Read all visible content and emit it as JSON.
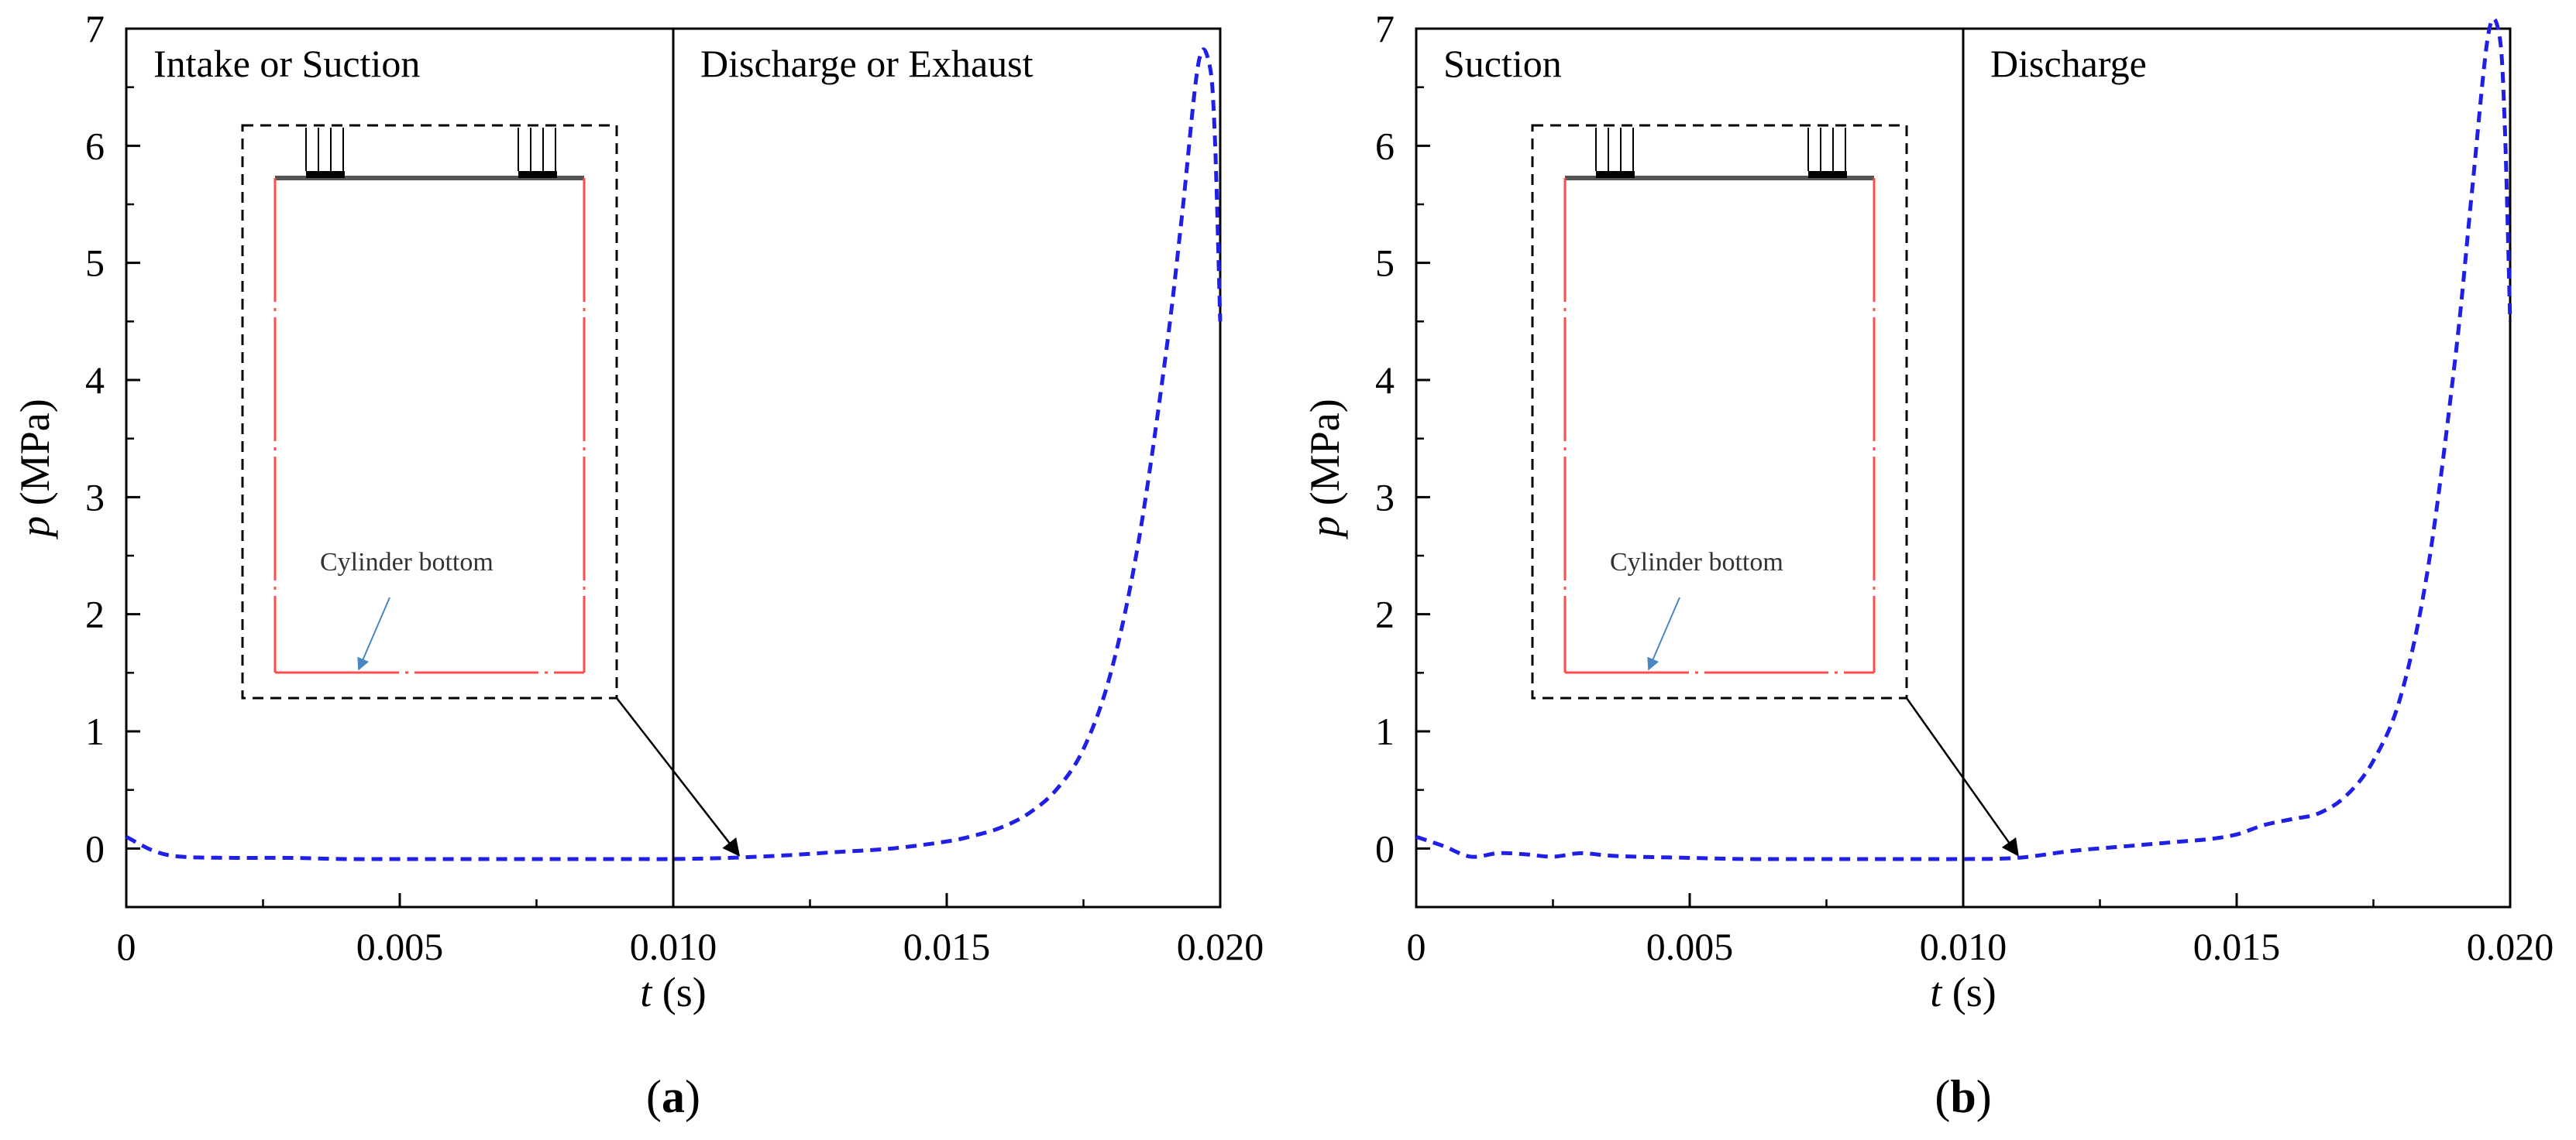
{
  "chart_data": [
    {
      "type": "line",
      "panel_label": "a",
      "xlabel": "t (s)",
      "xlabel_var": "t",
      "xlabel_unit": " (s)",
      "ylabel": "p (MPa)",
      "ylabel_var": "p",
      "ylabel_unit": " (MPa)",
      "xlim": [
        0,
        0.02
      ],
      "ylim": [
        -0.5,
        7
      ],
      "xticks": [
        0,
        0.005,
        0.01,
        0.015,
        0.02
      ],
      "xtick_labels": [
        "0",
        "0.005",
        "0.010",
        "0.015",
        "0.020"
      ],
      "yticks": [
        0,
        1,
        2,
        3,
        4,
        5,
        6,
        7
      ],
      "ytick_labels": [
        "0",
        "1",
        "2",
        "3",
        "4",
        "5",
        "6",
        "7"
      ],
      "divider_x": 0.01,
      "regions": {
        "left": "Intake or Suction",
        "right": "Discharge or Exhaust"
      },
      "inset_label": "Cylinder bottom",
      "arrow_target": {
        "x": 0.0112,
        "y": -0.07
      },
      "series": [
        {
          "name": "pressure",
          "color": "#1f1fe6",
          "style": "dashed",
          "x": [
            0,
            0.0005,
            0.001,
            0.002,
            0.003,
            0.004,
            0.005,
            0.006,
            0.007,
            0.008,
            0.009,
            0.01,
            0.011,
            0.012,
            0.013,
            0.014,
            0.015,
            0.0155,
            0.016,
            0.0165,
            0.017,
            0.0175,
            0.018,
            0.0185,
            0.019,
            0.0193,
            0.0196,
            0.0198,
            0.0199,
            0.02
          ],
          "y": [
            0.1,
            -0.02,
            -0.07,
            -0.08,
            -0.08,
            -0.09,
            -0.09,
            -0.09,
            -0.09,
            -0.09,
            -0.09,
            -0.09,
            -0.08,
            -0.06,
            -0.03,
            0.0,
            0.06,
            0.11,
            0.18,
            0.3,
            0.5,
            0.85,
            1.5,
            2.6,
            4.2,
            5.4,
            6.7,
            6.7,
            6.1,
            4.5
          ]
        }
      ]
    },
    {
      "type": "line",
      "panel_label": "b",
      "xlabel": "t (s)",
      "xlabel_var": "t",
      "xlabel_unit": " (s)",
      "ylabel": "p (MPa)",
      "ylabel_var": "p",
      "ylabel_unit": " (MPa)",
      "xlim": [
        0,
        0.02
      ],
      "ylim": [
        -0.5,
        7
      ],
      "xticks": [
        0,
        0.005,
        0.01,
        0.015,
        0.02
      ],
      "xtick_labels": [
        "0",
        "0.005",
        "0.010",
        "0.015",
        "0.020"
      ],
      "yticks": [
        0,
        1,
        2,
        3,
        4,
        5,
        6,
        7
      ],
      "ytick_labels": [
        "0",
        "1",
        "2",
        "3",
        "4",
        "5",
        "6",
        "7"
      ],
      "divider_x": 0.01,
      "regions": {
        "left": "Suction",
        "right": "Discharge"
      },
      "inset_label": "Cylinder bottom",
      "arrow_target": {
        "x": 0.011,
        "y": -0.07
      },
      "series": [
        {
          "name": "pressure",
          "color": "#1f1fe6",
          "style": "dashed",
          "x": [
            0,
            0.0005,
            0.001,
            0.0015,
            0.002,
            0.0025,
            0.003,
            0.0035,
            0.004,
            0.005,
            0.006,
            0.007,
            0.008,
            0.009,
            0.01,
            0.011,
            0.012,
            0.013,
            0.014,
            0.0145,
            0.015,
            0.0155,
            0.016,
            0.0165,
            0.017,
            0.0175,
            0.018,
            0.0185,
            0.019,
            0.0193,
            0.0196,
            0.0198,
            0.0199,
            0.02
          ],
          "y": [
            0.1,
            0.02,
            -0.07,
            -0.04,
            -0.05,
            -0.07,
            -0.04,
            -0.06,
            -0.07,
            -0.08,
            -0.09,
            -0.09,
            -0.09,
            -0.09,
            -0.09,
            -0.08,
            -0.02,
            0.02,
            0.06,
            0.08,
            0.12,
            0.2,
            0.25,
            0.3,
            0.45,
            0.75,
            1.3,
            2.4,
            4.2,
            5.6,
            6.95,
            6.95,
            6.2,
            4.5
          ]
        }
      ]
    }
  ]
}
